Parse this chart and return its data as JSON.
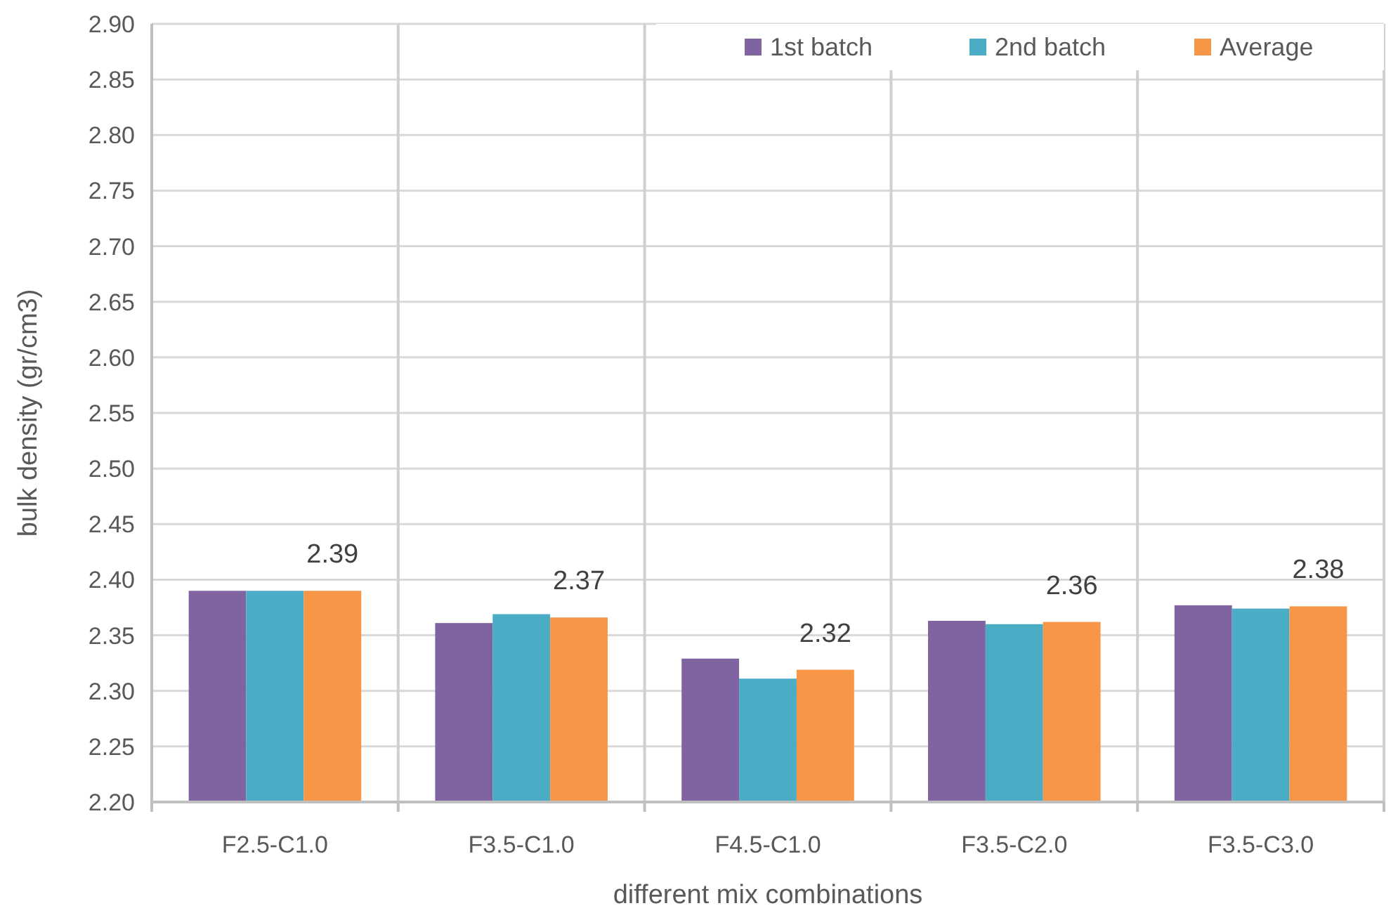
{
  "chart_data": {
    "type": "bar",
    "xlabel": "different mix combinations",
    "ylabel": "bulk density (gr/cm3)",
    "categories": [
      "F2.5-C1.0",
      "F3.5-C1.0",
      "F4.5-C1.0",
      "F3.5-C2.0",
      "F3.5-C3.0"
    ],
    "series": [
      {
        "name": "1st batch",
        "color": "#8064a2",
        "values": [
          2.39,
          2.361,
          2.329,
          2.363,
          2.377
        ]
      },
      {
        "name": "2nd batch",
        "color": "#4bacc6",
        "values": [
          2.39,
          2.369,
          2.311,
          2.36,
          2.374
        ]
      },
      {
        "name": "Average",
        "color": "#f79646",
        "values": [
          2.39,
          2.366,
          2.319,
          2.362,
          2.376
        ],
        "value_labels": [
          "2.39",
          "2.37",
          "2.32",
          "2.36",
          "2.38"
        ]
      }
    ],
    "ylim": [
      2.2,
      2.9
    ],
    "yticks": [
      {
        "value": 2.2,
        "label": "2.20"
      },
      {
        "value": 2.25,
        "label": "2.25"
      },
      {
        "value": 2.3,
        "label": "2.30"
      },
      {
        "value": 2.35,
        "label": "2.35"
      },
      {
        "value": 2.4,
        "label": "2.40"
      },
      {
        "value": 2.45,
        "label": "2.45"
      },
      {
        "value": 2.5,
        "label": "2.50"
      },
      {
        "value": 2.55,
        "label": "2.55"
      },
      {
        "value": 2.6,
        "label": "2.60"
      },
      {
        "value": 2.65,
        "label": "2.65"
      },
      {
        "value": 2.7,
        "label": "2.70"
      },
      {
        "value": 2.75,
        "label": "2.75"
      },
      {
        "value": 2.8,
        "label": "2.80"
      },
      {
        "value": 2.85,
        "label": "2.85"
      },
      {
        "value": 2.9,
        "label": "2.90"
      }
    ],
    "grid": true,
    "legend": "top right"
  }
}
